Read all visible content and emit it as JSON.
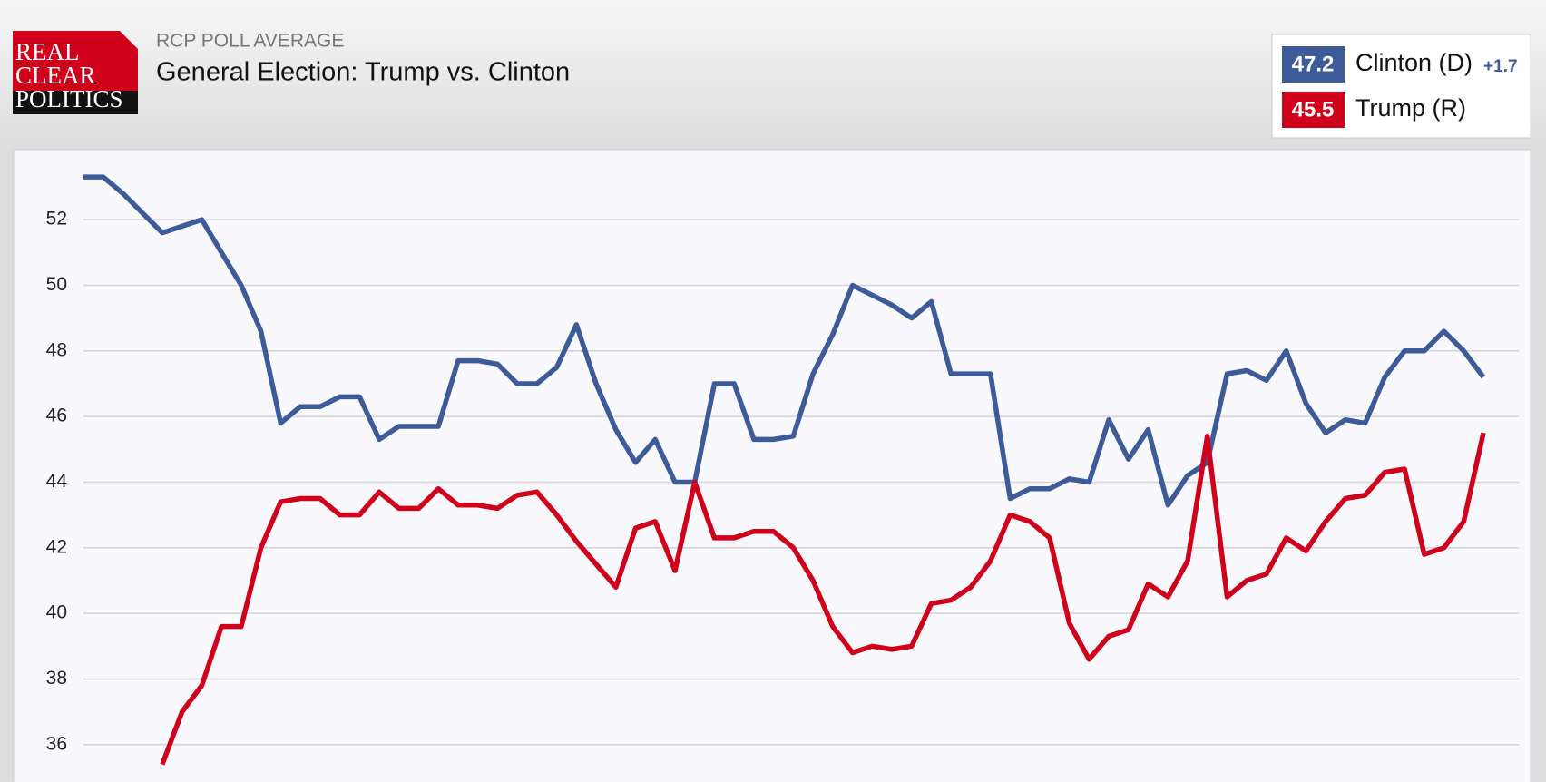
{
  "logo": [
    "REAL",
    "CLEAR",
    "POLITICS"
  ],
  "chart_data": {
    "type": "line",
    "kicker": "RCP POLL AVERAGE",
    "title": "General Election: Trump vs. Clinton",
    "legend": [
      {
        "latest": 47.2,
        "spread": "+1.7"
      },
      {
        "latest": 45.5
      }
    ],
    "ylim": [
      34.86,
      54.05
    ],
    "yticks": [
      36,
      38,
      40,
      42,
      44,
      46,
      48,
      50,
      52
    ],
    "grid": true,
    "series": [
      {
        "name": "Clinton (D)",
        "color": "#3d5a99",
        "values": [
          53.3,
          53.3,
          52.8,
          52.2,
          51.6,
          51.8,
          52.0,
          51.0,
          50.0,
          48.6,
          45.8,
          46.3,
          46.3,
          46.6,
          46.6,
          45.3,
          45.7,
          45.7,
          45.7,
          47.7,
          47.7,
          47.6,
          47.0,
          47.0,
          47.5,
          48.8,
          47.0,
          45.6,
          44.6,
          45.3,
          44.0,
          44.0,
          47.0,
          47.0,
          45.3,
          45.3,
          45.4,
          47.3,
          48.5,
          50.0,
          49.7,
          49.4,
          49.0,
          49.5,
          47.3,
          47.3,
          47.3,
          43.5,
          43.8,
          43.8,
          44.1,
          44.0,
          45.9,
          44.7,
          45.6,
          43.3,
          44.2,
          44.6,
          47.3,
          47.4,
          47.1,
          48.0,
          46.4,
          45.5,
          45.9,
          45.8,
          47.2,
          48.0,
          48.0,
          48.6,
          48.0,
          47.2
        ]
      },
      {
        "name": "Trump (R)",
        "color": "#d0021b",
        "values": [
          null,
          null,
          null,
          null,
          35.4,
          37.0,
          37.8,
          39.6,
          39.6,
          42.0,
          43.4,
          43.5,
          43.5,
          43.0,
          43.0,
          43.7,
          43.2,
          43.2,
          43.8,
          43.3,
          43.3,
          43.2,
          43.6,
          43.7,
          43.0,
          42.2,
          41.5,
          40.8,
          42.6,
          42.8,
          41.3,
          44.0,
          42.3,
          42.3,
          42.5,
          42.5,
          42.0,
          41.0,
          39.6,
          38.8,
          39.0,
          38.9,
          39.0,
          40.3,
          40.4,
          40.8,
          41.6,
          43.0,
          42.8,
          42.3,
          39.7,
          38.6,
          39.3,
          39.5,
          40.9,
          40.5,
          41.6,
          45.4,
          40.5,
          41.0,
          41.2,
          42.3,
          41.9,
          42.8,
          43.5,
          43.6,
          44.3,
          44.4,
          41.8,
          42.0,
          42.8,
          45.5
        ]
      }
    ]
  }
}
